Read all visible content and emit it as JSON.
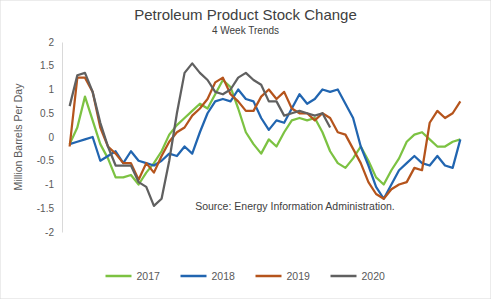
{
  "chart_data": {
    "type": "line",
    "title": "Petroleum Product Stock Change",
    "subtitle": "4 Week Trends",
    "y_label": "Million Barrels Per Day",
    "annotations": [
      "Source: Energy Information Administration."
    ],
    "categories": [
      null,
      null,
      null,
      null,
      null,
      null,
      null,
      null,
      null,
      null,
      null,
      null,
      null,
      null,
      null,
      null,
      null,
      null,
      null,
      null,
      null,
      null,
      null,
      null,
      null,
      null,
      null,
      null,
      null,
      null,
      null,
      null,
      null,
      null,
      null,
      null,
      null,
      null,
      null,
      null,
      null,
      null,
      null,
      null,
      null,
      null,
      null,
      null,
      null,
      null,
      null,
      null
    ],
    "ylim": [
      -2,
      2
    ],
    "yticks": [
      -2,
      -1.5,
      -1,
      -0.5,
      0,
      0.5,
      1,
      1.5,
      2
    ],
    "grid": false,
    "legend": "bottom",
    "tick_labels": "y",
    "series": [
      {
        "name": "2017",
        "color": "#7cc242",
        "values": [
          -0.15,
          0.2,
          0.85,
          0.35,
          -0.15,
          -0.45,
          -0.85,
          -0.85,
          -0.8,
          -1.0,
          -0.75,
          -0.55,
          -0.3,
          0.05,
          0.25,
          0.4,
          0.55,
          0.7,
          0.6,
          0.9,
          1.2,
          1.05,
          0.6,
          0.1,
          -0.15,
          -0.35,
          -0.05,
          -0.2,
          0.1,
          0.35,
          0.4,
          0.35,
          0.4,
          0.1,
          -0.3,
          -0.55,
          -0.65,
          -0.45,
          -0.2,
          -0.5,
          -0.85,
          -1.0,
          -0.7,
          -0.45,
          -0.1,
          0.05,
          0.1,
          -0.05,
          -0.2,
          -0.2,
          -0.1,
          -0.05
        ]
      },
      {
        "name": "2018",
        "color": "#2165b0",
        "values": [
          -0.15,
          -0.1,
          -0.05,
          0,
          -0.5,
          -0.4,
          -0.3,
          -0.55,
          -0.3,
          -0.5,
          -0.55,
          -0.6,
          -0.5,
          -0.35,
          -0.4,
          -0.2,
          -0.35,
          0.1,
          0.5,
          0.75,
          0.8,
          0.75,
          1.0,
          0.8,
          0.75,
          0.4,
          0.15,
          0.35,
          0.3,
          0.6,
          0.9,
          0.7,
          0.8,
          1.0,
          0.95,
          1.0,
          0.7,
          0.4,
          -0.2,
          -0.6,
          -1.05,
          -1.3,
          -1.0,
          -0.7,
          -0.55,
          -0.4,
          -0.55,
          -0.6,
          -0.4,
          -0.6,
          -0.65,
          -0.05
        ]
      },
      {
        "name": "2019",
        "color": "#b5541c",
        "values": [
          -0.2,
          1.25,
          1.25,
          0.95,
          0.2,
          -0.2,
          -0.35,
          -0.55,
          -0.55,
          -0.9,
          -0.55,
          -0.75,
          -0.4,
          -0.1,
          0.1,
          0.2,
          0.45,
          0.6,
          0.8,
          1.15,
          1.25,
          0.9,
          0.75,
          0.55,
          0.55,
          0.85,
          1.0,
          0.8,
          0.95,
          0.6,
          0.5,
          0.5,
          0.35,
          0.5,
          0.4,
          0.1,
          0.05,
          -0.25,
          -0.55,
          -0.95,
          -1.2,
          -1.3,
          -1.1,
          -1.0,
          -0.95,
          -0.65,
          -0.7,
          0.3,
          0.55,
          0.4,
          0.5,
          0.75
        ]
      },
      {
        "name": "2020",
        "color": "#606060",
        "values": [
          0.65,
          1.3,
          1.35,
          0.95,
          0.3,
          -0.2,
          -0.6,
          -0.6,
          -0.6,
          -0.95,
          -1.05,
          -1.45,
          -1.3,
          -0.5,
          0.5,
          1.35,
          1.55,
          1.35,
          1.2,
          0.95,
          0.9,
          1.0,
          1.25,
          1.35,
          1.2,
          1.1,
          0.75,
          0.75,
          0.45,
          0.5,
          0.55,
          0.5,
          0.45,
          0.5,
          0.2,
          null,
          null,
          null,
          null,
          null,
          null,
          null,
          null,
          null,
          null,
          null,
          null,
          null,
          null,
          null,
          null,
          null
        ]
      }
    ]
  }
}
